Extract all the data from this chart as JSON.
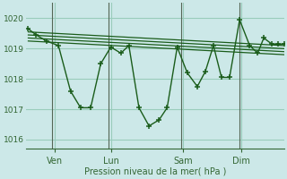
{
  "background_color": "#cce8e8",
  "grid_color": "#99ccbb",
  "line_color": "#1a5c1a",
  "ylabel_text": "Pression niveau de la mer( hPa )",
  "yticks": [
    1016,
    1017,
    1018,
    1019,
    1020
  ],
  "ylim": [
    1015.7,
    1020.5
  ],
  "xtick_labels": [
    "Ven",
    "Lun",
    "Sam",
    "Dim"
  ],
  "xtick_positions": [
    14,
    42,
    78,
    107
  ],
  "xlim": [
    0,
    128
  ],
  "main_series_x": [
    1,
    5,
    10,
    16,
    22,
    27,
    32,
    37,
    42,
    47,
    51,
    56,
    61,
    66,
    70,
    75,
    80,
    85,
    89,
    93,
    97,
    101,
    106,
    111,
    115,
    118,
    122,
    125,
    128
  ],
  "main_series_y": [
    1019.65,
    1019.45,
    1019.25,
    1019.1,
    1017.6,
    1017.05,
    1017.05,
    1018.5,
    1019.05,
    1018.85,
    1019.1,
    1017.05,
    1016.45,
    1016.65,
    1017.05,
    1019.05,
    1018.2,
    1017.75,
    1018.25,
    1019.1,
    1018.05,
    1018.05,
    1019.95,
    1019.1,
    1018.85,
    1019.35,
    1019.15,
    1019.15,
    1019.15
  ],
  "flat_lines": [
    {
      "x": [
        1,
        128
      ],
      "y": [
        1019.55,
        1019.1
      ]
    },
    {
      "x": [
        1,
        128
      ],
      "y": [
        1019.45,
        1019.0
      ]
    },
    {
      "x": [
        1,
        128
      ],
      "y": [
        1019.35,
        1018.9
      ]
    },
    {
      "x": [
        1,
        128
      ],
      "y": [
        1019.25,
        1018.8
      ]
    }
  ],
  "vline_positions": [
    13,
    41,
    77,
    106
  ],
  "figsize": [
    3.2,
    2.0
  ],
  "dpi": 100
}
